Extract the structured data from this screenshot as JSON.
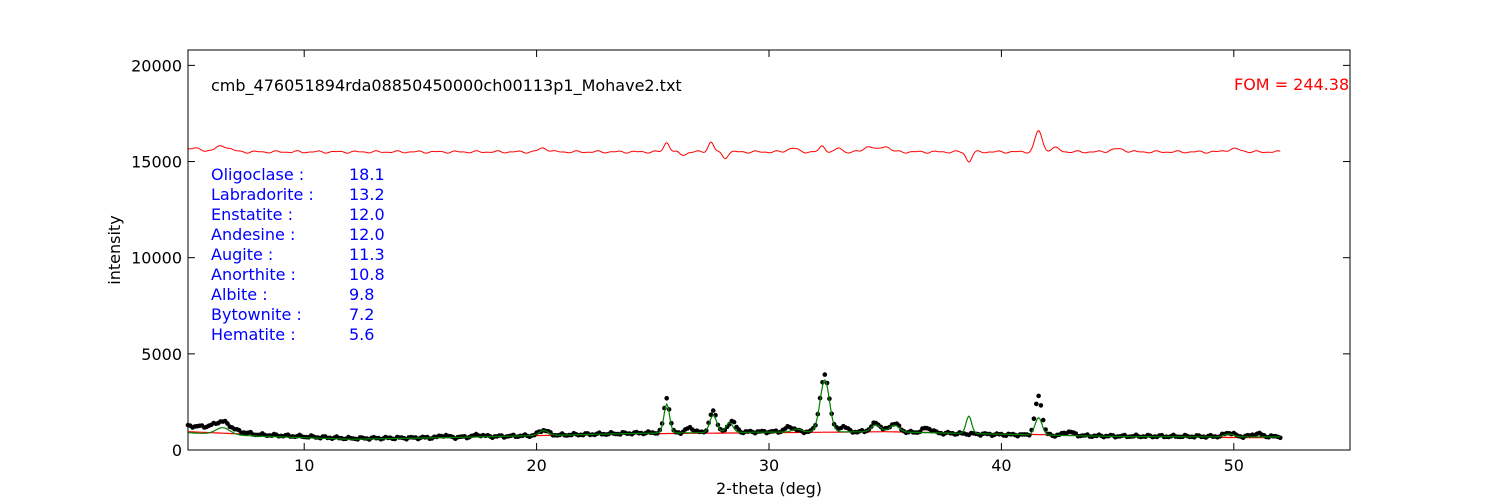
{
  "chart_data": {
    "type": "scatter",
    "title": "cmb_476051894rda08850450000ch00113p1_Mohave2.txt",
    "xlabel": "2-theta (deg)",
    "ylabel": "intensity",
    "xlim": [
      5,
      55
    ],
    "ylim": [
      0,
      20800
    ],
    "xticks": [
      10,
      20,
      30,
      40,
      50
    ],
    "yticks": [
      0,
      5000,
      10000,
      15000,
      20000
    ],
    "grid": false,
    "fom_text": "FOM = 244.38",
    "phases": [
      {
        "name": "Oligoclase :",
        "value": "18.1"
      },
      {
        "name": "Labradorite :",
        "value": "13.2"
      },
      {
        "name": "Enstatite :",
        "value": "12.0"
      },
      {
        "name": "Andesine :",
        "value": "12.0"
      },
      {
        "name": "Augite :",
        "value": "11.3"
      },
      {
        "name": "Anorthite :",
        "value": "10.8"
      },
      {
        "name": "Albite :",
        "value": "9.8"
      },
      {
        "name": "Bytownite :",
        "value": "7.2"
      },
      {
        "name": "Hematite :",
        "value": "5.6"
      }
    ],
    "x_range": [
      5.0,
      52.0
    ],
    "background_curve": {
      "color": "#ff0000",
      "points": [
        [
          5.0,
          950
        ],
        [
          8,
          800
        ],
        [
          12,
          600
        ],
        [
          16,
          650
        ],
        [
          20,
          750
        ],
        [
          25,
          850
        ],
        [
          30,
          900
        ],
        [
          35,
          950
        ],
        [
          40,
          850
        ],
        [
          45,
          700
        ],
        [
          50,
          650
        ],
        [
          52.0,
          640
        ]
      ]
    },
    "fit_curve": {
      "color": "#008000",
      "baseline": [
        [
          5.0,
          900
        ],
        [
          8,
          720
        ],
        [
          12,
          560
        ],
        [
          16,
          640
        ],
        [
          20,
          750
        ],
        [
          25,
          880
        ],
        [
          30,
          930
        ],
        [
          35,
          950
        ],
        [
          40,
          820
        ],
        [
          45,
          700
        ],
        [
          50,
          680
        ],
        [
          52.0,
          680
        ]
      ],
      "peaks": [
        [
          6.5,
          350,
          0.3
        ],
        [
          20.3,
          250,
          0.2
        ],
        [
          25.6,
          1500,
          0.12
        ],
        [
          27.6,
          900,
          0.15
        ],
        [
          28.3,
          500,
          0.15
        ],
        [
          31.2,
          150,
          0.2
        ],
        [
          32.4,
          2700,
          0.2
        ],
        [
          34.6,
          350,
          0.2
        ],
        [
          35.4,
          350,
          0.2
        ],
        [
          38.6,
          900,
          0.12
        ],
        [
          41.6,
          900,
          0.15
        ],
        [
          49.8,
          150,
          0.2
        ]
      ]
    },
    "observed": {
      "color": "#000000",
      "baseline": [
        [
          5.0,
          1250
        ],
        [
          6,
          1200
        ],
        [
          8,
          800
        ],
        [
          12,
          600
        ],
        [
          16,
          650
        ],
        [
          20,
          750
        ],
        [
          25,
          900
        ],
        [
          30,
          950
        ],
        [
          35,
          950
        ],
        [
          40,
          800
        ],
        [
          45,
          720
        ],
        [
          50,
          700
        ],
        [
          52.0,
          700
        ]
      ],
      "peaks": [
        [
          6.5,
          380,
          0.3
        ],
        [
          16.0,
          120,
          0.15
        ],
        [
          17.5,
          100,
          0.2
        ],
        [
          20.3,
          280,
          0.2
        ],
        [
          25.6,
          1800,
          0.12
        ],
        [
          26.6,
          250,
          0.15
        ],
        [
          27.6,
          1100,
          0.15
        ],
        [
          28.4,
          600,
          0.15
        ],
        [
          30.9,
          250,
          0.2
        ],
        [
          32.4,
          2900,
          0.2
        ],
        [
          33.2,
          300,
          0.15
        ],
        [
          34.6,
          450,
          0.2
        ],
        [
          35.4,
          450,
          0.2
        ],
        [
          36.8,
          250,
          0.2
        ],
        [
          41.6,
          2000,
          0.15
        ],
        [
          42.9,
          200,
          0.2
        ],
        [
          49.8,
          200,
          0.2
        ],
        [
          51.0,
          150,
          0.2
        ]
      ]
    },
    "residual": {
      "color": "#ff0000",
      "offset": 15500,
      "bumps": [
        [
          5.0,
          200,
          0.5
        ],
        [
          6.5,
          300,
          0.3
        ],
        [
          20.3,
          200,
          0.2
        ],
        [
          25.6,
          500,
          0.12
        ],
        [
          26.3,
          -150,
          0.15
        ],
        [
          27.5,
          500,
          0.12
        ],
        [
          28.1,
          -300,
          0.12
        ],
        [
          31.0,
          200,
          0.2
        ],
        [
          32.3,
          300,
          0.12
        ],
        [
          33.0,
          200,
          0.12
        ],
        [
          34.3,
          300,
          0.2
        ],
        [
          35.0,
          300,
          0.2
        ],
        [
          38.6,
          -500,
          0.12
        ],
        [
          41.6,
          1100,
          0.15
        ],
        [
          42.3,
          200,
          0.2
        ],
        [
          45.0,
          150,
          0.3
        ],
        [
          50.0,
          150,
          0.3
        ]
      ]
    }
  }
}
